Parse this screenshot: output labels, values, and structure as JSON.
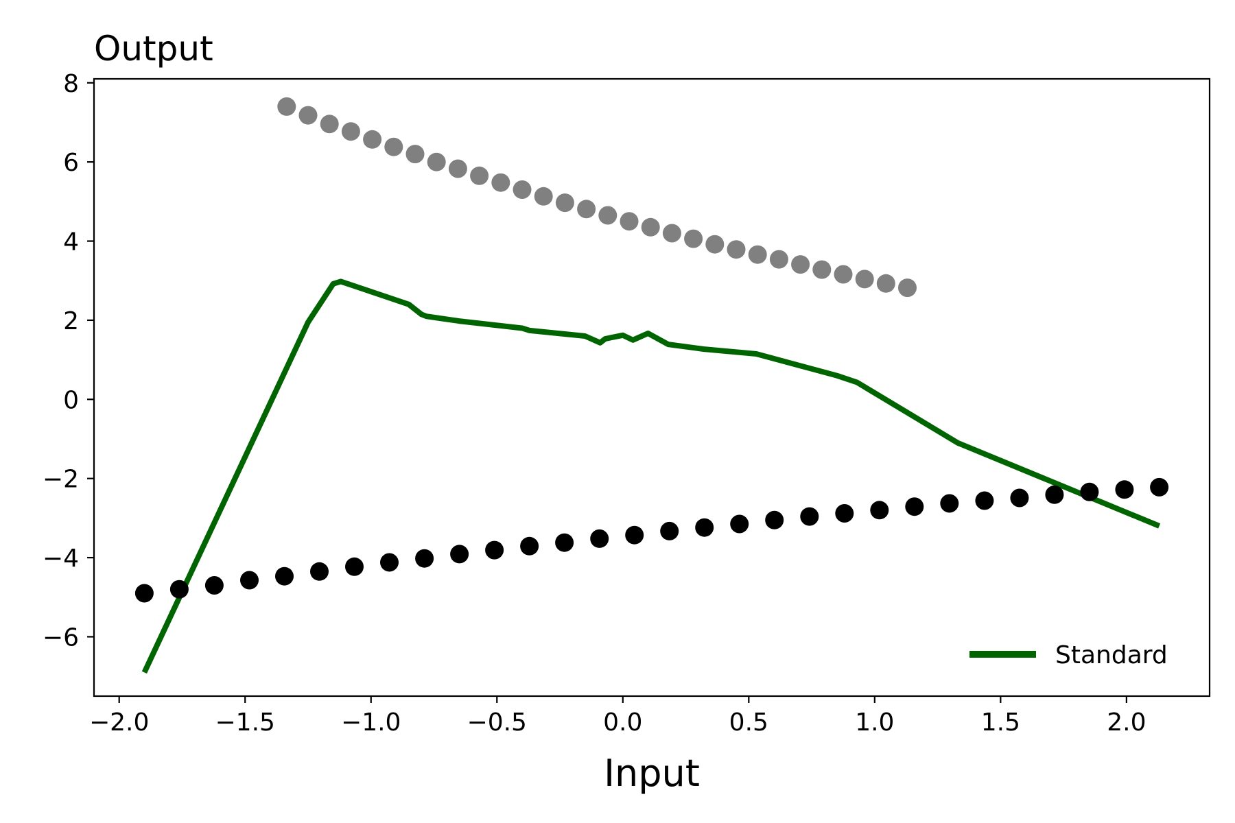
{
  "chart_data": {
    "type": "line",
    "title": "",
    "xlabel": "Input",
    "ylabel": "Output",
    "xlim": [
      -2.1,
      2.33
    ],
    "ylim": [
      -7.5,
      8.1
    ],
    "xticks": [
      -2.0,
      -1.5,
      -1.0,
      -0.5,
      0.0,
      0.5,
      1.0,
      1.5,
      2.0
    ],
    "xtick_labels": [
      "−2.0",
      "−1.5",
      "−1.0",
      "−0.5",
      "0.0",
      "0.5",
      "1.0",
      "1.5",
      "2.0"
    ],
    "yticks": [
      -6,
      -4,
      -2,
      0,
      2,
      4,
      6,
      8
    ],
    "ytick_labels": [
      "−6",
      "−4",
      "−2",
      "0",
      "2",
      "4",
      "6",
      "8"
    ],
    "grid": false,
    "legend": {
      "position": "lower-right",
      "entries": [
        "Standard"
      ]
    },
    "series": [
      {
        "name": "Standard",
        "kind": "line",
        "color": "#006400",
        "x": [
          -1.9,
          -1.25,
          -1.15,
          -1.12,
          -0.85,
          -0.8,
          -0.78,
          -0.65,
          -0.4,
          -0.37,
          -0.15,
          -0.09,
          -0.07,
          0.0,
          0.04,
          0.1,
          0.18,
          0.32,
          0.53,
          0.85,
          0.93,
          1.33,
          2.13
        ],
        "y": [
          -6.9,
          1.95,
          2.92,
          2.98,
          2.4,
          2.15,
          2.1,
          1.98,
          1.8,
          1.74,
          1.6,
          1.43,
          1.53,
          1.62,
          1.5,
          1.67,
          1.39,
          1.27,
          1.15,
          0.6,
          0.43,
          -1.1,
          -3.2
        ]
      },
      {
        "name": "",
        "kind": "scatter",
        "color": "#000000",
        "x": [
          -1.9,
          -1.761,
          -1.622,
          -1.483,
          -1.344,
          -1.205,
          -1.066,
          -0.927,
          -0.788,
          -0.649,
          -0.51,
          -0.371,
          -0.232,
          -0.093,
          0.046,
          0.185,
          0.324,
          0.463,
          0.602,
          0.741,
          0.88,
          1.019,
          1.158,
          1.297,
          1.436,
          1.575,
          1.714,
          1.853,
          1.992,
          2.13
        ],
        "y": [
          -4.9,
          -4.8,
          -4.7,
          -4.57,
          -4.47,
          -4.35,
          -4.23,
          -4.12,
          -4.02,
          -3.91,
          -3.81,
          -3.71,
          -3.62,
          -3.52,
          -3.43,
          -3.33,
          -3.24,
          -3.15,
          -3.05,
          -2.96,
          -2.88,
          -2.8,
          -2.71,
          -2.63,
          -2.56,
          -2.49,
          -2.41,
          -2.34,
          -2.28,
          -2.22
        ]
      },
      {
        "name": "",
        "kind": "scatter",
        "color": "#808080",
        "x": [
          -1.335,
          -1.25,
          -1.165,
          -1.08,
          -0.995,
          -0.91,
          -0.825,
          -0.74,
          -0.655,
          -0.57,
          -0.485,
          -0.4,
          -0.315,
          -0.23,
          -0.145,
          -0.06,
          0.025,
          0.11,
          0.195,
          0.28,
          0.365,
          0.45,
          0.535,
          0.62,
          0.705,
          0.79,
          0.875,
          0.96,
          1.045,
          1.13
        ],
        "y": [
          7.4,
          7.18,
          6.96,
          6.77,
          6.57,
          6.38,
          6.2,
          6.0,
          5.83,
          5.65,
          5.48,
          5.3,
          5.13,
          4.97,
          4.81,
          4.65,
          4.5,
          4.35,
          4.2,
          4.06,
          3.92,
          3.79,
          3.66,
          3.54,
          3.41,
          3.28,
          3.16,
          3.04,
          2.93,
          2.82
        ]
      }
    ]
  }
}
